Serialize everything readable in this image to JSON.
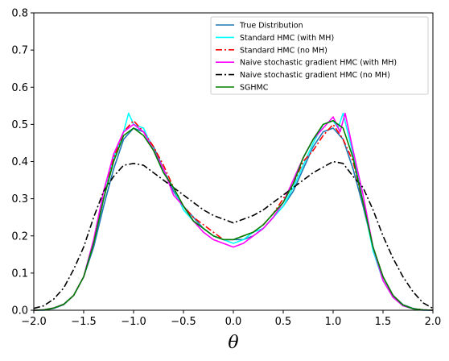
{
  "chart_data": {
    "type": "line",
    "title": "",
    "xlabel": "θ",
    "ylabel": "",
    "xlim": [
      -2.0,
      2.0
    ],
    "ylim": [
      0.0,
      0.8
    ],
    "xticks": [
      "−2.0",
      "−1.5",
      "−1.0",
      "−0.5",
      "0.0",
      "0.5",
      "1.0",
      "1.5",
      "2.0"
    ],
    "xtick_values": [
      -2.0,
      -1.5,
      -1.0,
      -0.5,
      0.0,
      0.5,
      1.0,
      1.5,
      2.0
    ],
    "yticks": [
      "0.0",
      "0.1",
      "0.2",
      "0.3",
      "0.4",
      "0.5",
      "0.6",
      "0.7",
      "0.8"
    ],
    "ytick_values": [
      0.0,
      0.1,
      0.2,
      0.3,
      0.4,
      0.5,
      0.6,
      0.7,
      0.8
    ],
    "grid": false,
    "legend_position": "top-right",
    "series": [
      {
        "name": "True Distribution",
        "color": "#1f77b4",
        "style": "solid",
        "x": [
          -2.0,
          -1.9,
          -1.8,
          -1.7,
          -1.6,
          -1.5,
          -1.4,
          -1.3,
          -1.2,
          -1.1,
          -1.0,
          -0.9,
          -0.8,
          -0.7,
          -0.6,
          -0.5,
          -0.4,
          -0.3,
          -0.2,
          -0.1,
          0.0,
          0.1,
          0.2,
          0.3,
          0.4,
          0.5,
          0.6,
          0.7,
          0.8,
          0.9,
          1.0,
          1.1,
          1.2,
          1.3,
          1.4,
          1.5,
          1.6,
          1.7,
          1.8,
          1.9,
          2.0
        ],
        "y": [
          0.0,
          0.0,
          0.005,
          0.015,
          0.04,
          0.09,
          0.17,
          0.28,
          0.38,
          0.46,
          0.49,
          0.48,
          0.44,
          0.38,
          0.32,
          0.28,
          0.25,
          0.22,
          0.2,
          0.19,
          0.19,
          0.19,
          0.2,
          0.22,
          0.25,
          0.28,
          0.32,
          0.38,
          0.44,
          0.48,
          0.49,
          0.46,
          0.38,
          0.28,
          0.17,
          0.09,
          0.04,
          0.015,
          0.005,
          0.0,
          0.0
        ]
      },
      {
        "name": "Standard HMC (with MH)",
        "color": "#00ffff",
        "style": "solid",
        "x": [
          -2.0,
          -1.9,
          -1.8,
          -1.7,
          -1.6,
          -1.5,
          -1.4,
          -1.3,
          -1.2,
          -1.1,
          -1.05,
          -1.0,
          -0.9,
          -0.8,
          -0.7,
          -0.6,
          -0.5,
          -0.4,
          -0.3,
          -0.2,
          -0.1,
          0.0,
          0.1,
          0.2,
          0.3,
          0.4,
          0.5,
          0.6,
          0.7,
          0.8,
          0.9,
          1.0,
          1.05,
          1.1,
          1.2,
          1.3,
          1.4,
          1.5,
          1.6,
          1.7,
          1.8,
          1.9,
          2.0
        ],
        "y": [
          0.0,
          0.001,
          0.006,
          0.016,
          0.04,
          0.09,
          0.18,
          0.3,
          0.41,
          0.48,
          0.53,
          0.5,
          0.49,
          0.43,
          0.37,
          0.33,
          0.27,
          0.24,
          0.22,
          0.2,
          0.19,
          0.18,
          0.19,
          0.21,
          0.22,
          0.25,
          0.28,
          0.33,
          0.39,
          0.45,
          0.5,
          0.51,
          0.49,
          0.53,
          0.42,
          0.29,
          0.16,
          0.08,
          0.035,
          0.012,
          0.004,
          0.001,
          0.0
        ]
      },
      {
        "name": "Standard HMC (no MH)",
        "color": "#ff0000",
        "style": "dashdot",
        "x": [
          -2.0,
          -1.9,
          -1.8,
          -1.7,
          -1.6,
          -1.5,
          -1.4,
          -1.3,
          -1.2,
          -1.1,
          -1.0,
          -0.9,
          -0.8,
          -0.7,
          -0.6,
          -0.5,
          -0.4,
          -0.3,
          -0.2,
          -0.1,
          0.0,
          0.1,
          0.2,
          0.3,
          0.4,
          0.5,
          0.6,
          0.7,
          0.8,
          0.9,
          1.0,
          1.1,
          1.2,
          1.3,
          1.4,
          1.5,
          1.6,
          1.7,
          1.8,
          1.9,
          2.0
        ],
        "y": [
          0.0,
          0.001,
          0.006,
          0.016,
          0.04,
          0.09,
          0.18,
          0.32,
          0.41,
          0.48,
          0.51,
          0.48,
          0.44,
          0.39,
          0.33,
          0.28,
          0.25,
          0.23,
          0.21,
          0.19,
          0.19,
          0.2,
          0.21,
          0.23,
          0.26,
          0.3,
          0.34,
          0.4,
          0.43,
          0.47,
          0.5,
          0.46,
          0.4,
          0.29,
          0.17,
          0.09,
          0.04,
          0.014,
          0.004,
          0.001,
          0.0
        ]
      },
      {
        "name": "Naive stochastic gradient HMC (with MH)",
        "color": "#ff00ff",
        "style": "solid",
        "x": [
          -2.0,
          -1.9,
          -1.8,
          -1.7,
          -1.6,
          -1.5,
          -1.4,
          -1.3,
          -1.2,
          -1.1,
          -1.0,
          -0.9,
          -0.8,
          -0.7,
          -0.6,
          -0.5,
          -0.4,
          -0.3,
          -0.2,
          -0.1,
          0.0,
          0.1,
          0.2,
          0.3,
          0.4,
          0.5,
          0.6,
          0.7,
          0.8,
          0.9,
          1.0,
          1.07,
          1.12,
          1.2,
          1.3,
          1.4,
          1.5,
          1.6,
          1.7,
          1.8,
          1.9,
          2.0
        ],
        "y": [
          0.0,
          0.001,
          0.006,
          0.016,
          0.04,
          0.09,
          0.19,
          0.32,
          0.42,
          0.48,
          0.5,
          0.48,
          0.43,
          0.38,
          0.31,
          0.28,
          0.24,
          0.21,
          0.19,
          0.18,
          0.17,
          0.18,
          0.2,
          0.22,
          0.25,
          0.29,
          0.35,
          0.41,
          0.46,
          0.49,
          0.52,
          0.48,
          0.53,
          0.43,
          0.31,
          0.17,
          0.08,
          0.035,
          0.012,
          0.004,
          0.001,
          0.0
        ]
      },
      {
        "name": "Naive stochastic gradient HMC (no MH)",
        "color": "#000000",
        "style": "dashdot",
        "x": [
          -2.0,
          -1.9,
          -1.8,
          -1.7,
          -1.6,
          -1.5,
          -1.4,
          -1.3,
          -1.2,
          -1.1,
          -1.0,
          -0.9,
          -0.8,
          -0.7,
          -0.6,
          -0.5,
          -0.4,
          -0.3,
          -0.2,
          -0.1,
          0.0,
          0.1,
          0.2,
          0.3,
          0.4,
          0.5,
          0.6,
          0.7,
          0.8,
          0.9,
          1.0,
          1.1,
          1.2,
          1.3,
          1.4,
          1.5,
          1.6,
          1.7,
          1.8,
          1.9,
          2.0
        ],
        "y": [
          0.005,
          0.012,
          0.03,
          0.06,
          0.11,
          0.17,
          0.25,
          0.32,
          0.36,
          0.39,
          0.395,
          0.39,
          0.37,
          0.35,
          0.33,
          0.31,
          0.29,
          0.27,
          0.255,
          0.245,
          0.235,
          0.245,
          0.255,
          0.27,
          0.29,
          0.31,
          0.33,
          0.35,
          0.37,
          0.385,
          0.4,
          0.395,
          0.36,
          0.33,
          0.27,
          0.2,
          0.14,
          0.09,
          0.05,
          0.02,
          0.005
        ]
      },
      {
        "name": "SGHMC",
        "color": "#008000",
        "style": "solid",
        "x": [
          -2.0,
          -1.9,
          -1.8,
          -1.7,
          -1.6,
          -1.5,
          -1.4,
          -1.3,
          -1.2,
          -1.1,
          -1.0,
          -0.9,
          -0.8,
          -0.7,
          -0.6,
          -0.5,
          -0.4,
          -0.3,
          -0.2,
          -0.1,
          0.0,
          0.1,
          0.2,
          0.3,
          0.4,
          0.5,
          0.6,
          0.7,
          0.8,
          0.9,
          1.0,
          1.1,
          1.2,
          1.3,
          1.4,
          1.5,
          1.6,
          1.7,
          1.8,
          1.9,
          2.0
        ],
        "y": [
          0.0,
          0.001,
          0.006,
          0.016,
          0.04,
          0.09,
          0.18,
          0.3,
          0.4,
          0.47,
          0.49,
          0.47,
          0.43,
          0.37,
          0.33,
          0.28,
          0.24,
          0.22,
          0.2,
          0.19,
          0.19,
          0.2,
          0.21,
          0.23,
          0.26,
          0.29,
          0.34,
          0.41,
          0.46,
          0.5,
          0.51,
          0.49,
          0.41,
          0.29,
          0.17,
          0.09,
          0.04,
          0.014,
          0.004,
          0.001,
          0.0
        ]
      }
    ]
  }
}
